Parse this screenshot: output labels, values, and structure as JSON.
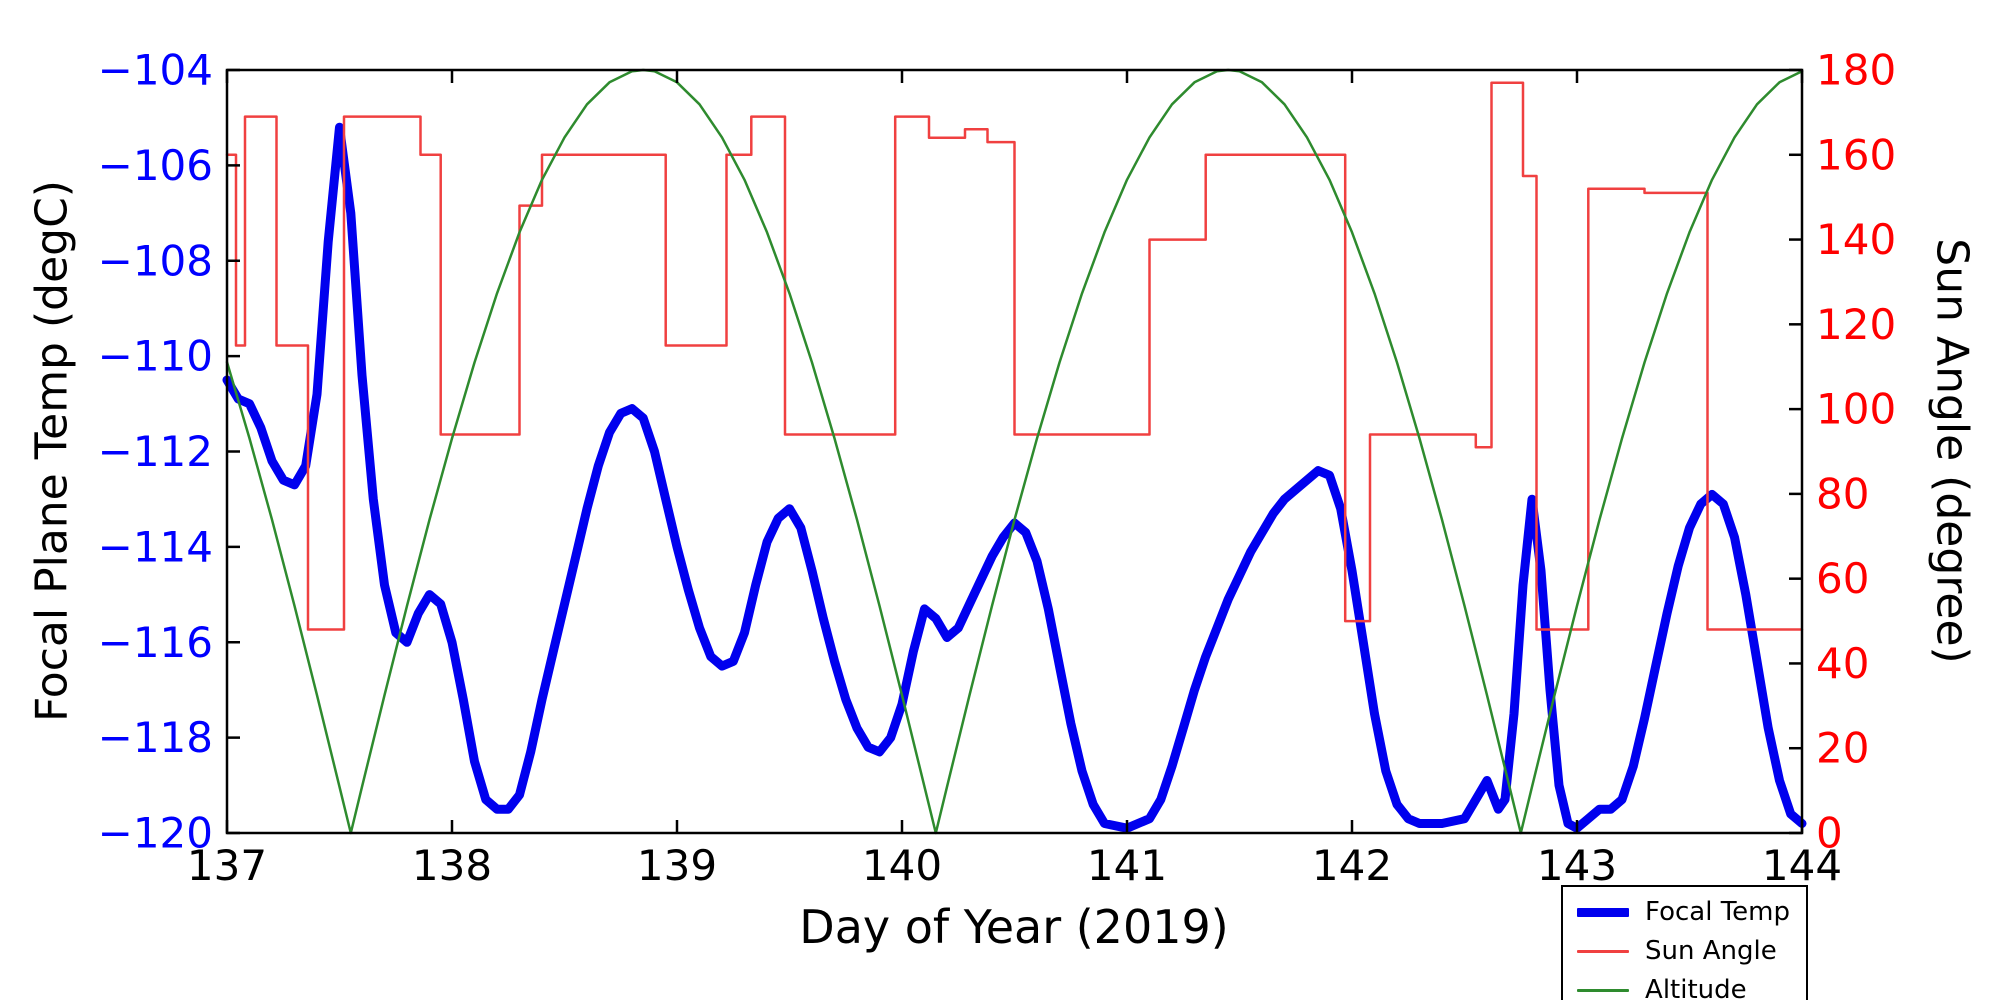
{
  "chart_data": {
    "type": "line",
    "title": "",
    "xlabel": "Day of Year (2019)",
    "ylabel_left": "Focal Plane Temp (degC)",
    "ylabel_right": "Sun Angle (degree)",
    "xlim": [
      137,
      144
    ],
    "ylim_left": [
      -120,
      -104
    ],
    "ylim_right": [
      0,
      180
    ],
    "grid": false,
    "xticks": [
      137,
      138,
      139,
      140,
      141,
      142,
      143,
      144
    ],
    "xtick_labels": [
      "137",
      "138",
      "139",
      "140",
      "141",
      "142",
      "143",
      "144"
    ],
    "yticks_left": [
      -104,
      -106,
      -108,
      -110,
      -112,
      -114,
      -116,
      -118,
      -120
    ],
    "ytick_labels_left": [
      "−104",
      "−106",
      "−108",
      "−110",
      "−112",
      "−114",
      "−116",
      "−118",
      "−120"
    ],
    "yticks_right": [
      0,
      20,
      40,
      60,
      80,
      100,
      120,
      140,
      160,
      180
    ],
    "ytick_labels_right": [
      "0",
      "20",
      "40",
      "60",
      "80",
      "100",
      "120",
      "140",
      "160",
      "180"
    ],
    "colors": {
      "focal_temp": "#0000ee",
      "sun_angle": "#f04040",
      "altitude": "#2e8b2e",
      "left_tick": "#0000ff",
      "right_tick": "#ff0000",
      "axis": "#000000"
    },
    "legend": {
      "position": "lower right",
      "entries": [
        "Focal Temp",
        "Sun Angle",
        "Altitude"
      ]
    },
    "series": [
      {
        "name": "Focal Temp",
        "axis": "left",
        "style": "line",
        "line_width": 9,
        "color_key": "focal_temp",
        "points": [
          [
            137.0,
            -110.5
          ],
          [
            137.05,
            -110.9
          ],
          [
            137.1,
            -111.0
          ],
          [
            137.15,
            -111.5
          ],
          [
            137.2,
            -112.2
          ],
          [
            137.25,
            -112.6
          ],
          [
            137.3,
            -112.7
          ],
          [
            137.35,
            -112.3
          ],
          [
            137.4,
            -110.8
          ],
          [
            137.45,
            -107.6
          ],
          [
            137.5,
            -105.2
          ],
          [
            137.55,
            -107.0
          ],
          [
            137.6,
            -110.4
          ],
          [
            137.65,
            -113.0
          ],
          [
            137.7,
            -114.8
          ],
          [
            137.75,
            -115.8
          ],
          [
            137.8,
            -116.0
          ],
          [
            137.85,
            -115.4
          ],
          [
            137.9,
            -115.0
          ],
          [
            137.95,
            -115.2
          ],
          [
            138.0,
            -116.0
          ],
          [
            138.05,
            -117.2
          ],
          [
            138.1,
            -118.5
          ],
          [
            138.15,
            -119.3
          ],
          [
            138.2,
            -119.5
          ],
          [
            138.25,
            -119.5
          ],
          [
            138.3,
            -119.2
          ],
          [
            138.35,
            -118.3
          ],
          [
            138.4,
            -117.2
          ],
          [
            138.45,
            -116.2
          ],
          [
            138.5,
            -115.2
          ],
          [
            138.55,
            -114.2
          ],
          [
            138.6,
            -113.2
          ],
          [
            138.65,
            -112.3
          ],
          [
            138.7,
            -111.6
          ],
          [
            138.75,
            -111.2
          ],
          [
            138.8,
            -111.1
          ],
          [
            138.85,
            -111.3
          ],
          [
            138.9,
            -112.0
          ],
          [
            138.95,
            -113.0
          ],
          [
            139.0,
            -114.0
          ],
          [
            139.05,
            -114.9
          ],
          [
            139.1,
            -115.7
          ],
          [
            139.15,
            -116.3
          ],
          [
            139.2,
            -116.5
          ],
          [
            139.25,
            -116.4
          ],
          [
            139.3,
            -115.8
          ],
          [
            139.35,
            -114.8
          ],
          [
            139.4,
            -113.9
          ],
          [
            139.45,
            -113.4
          ],
          [
            139.5,
            -113.2
          ],
          [
            139.55,
            -113.6
          ],
          [
            139.6,
            -114.5
          ],
          [
            139.65,
            -115.5
          ],
          [
            139.7,
            -116.4
          ],
          [
            139.75,
            -117.2
          ],
          [
            139.8,
            -117.8
          ],
          [
            139.85,
            -118.2
          ],
          [
            139.9,
            -118.3
          ],
          [
            139.95,
            -118.0
          ],
          [
            140.0,
            -117.3
          ],
          [
            140.05,
            -116.2
          ],
          [
            140.1,
            -115.3
          ],
          [
            140.15,
            -115.5
          ],
          [
            140.2,
            -115.9
          ],
          [
            140.25,
            -115.7
          ],
          [
            140.3,
            -115.2
          ],
          [
            140.35,
            -114.7
          ],
          [
            140.4,
            -114.2
          ],
          [
            140.45,
            -113.8
          ],
          [
            140.5,
            -113.5
          ],
          [
            140.55,
            -113.7
          ],
          [
            140.6,
            -114.3
          ],
          [
            140.65,
            -115.3
          ],
          [
            140.7,
            -116.5
          ],
          [
            140.75,
            -117.7
          ],
          [
            140.8,
            -118.7
          ],
          [
            140.85,
            -119.4
          ],
          [
            140.9,
            -119.8
          ],
          [
            141.0,
            -119.9
          ],
          [
            141.1,
            -119.7
          ],
          [
            141.15,
            -119.3
          ],
          [
            141.2,
            -118.6
          ],
          [
            141.25,
            -117.8
          ],
          [
            141.3,
            -117.0
          ],
          [
            141.35,
            -116.3
          ],
          [
            141.4,
            -115.7
          ],
          [
            141.45,
            -115.1
          ],
          [
            141.5,
            -114.6
          ],
          [
            141.55,
            -114.1
          ],
          [
            141.6,
            -113.7
          ],
          [
            141.65,
            -113.3
          ],
          [
            141.7,
            -113.0
          ],
          [
            141.75,
            -112.8
          ],
          [
            141.8,
            -112.6
          ],
          [
            141.85,
            -112.4
          ],
          [
            141.9,
            -112.5
          ],
          [
            141.95,
            -113.2
          ],
          [
            142.0,
            -114.5
          ],
          [
            142.05,
            -116.0
          ],
          [
            142.1,
            -117.5
          ],
          [
            142.15,
            -118.7
          ],
          [
            142.2,
            -119.4
          ],
          [
            142.25,
            -119.7
          ],
          [
            142.3,
            -119.8
          ],
          [
            142.4,
            -119.8
          ],
          [
            142.5,
            -119.7
          ],
          [
            142.55,
            -119.3
          ],
          [
            142.6,
            -118.9
          ],
          [
            142.65,
            -119.5
          ],
          [
            142.68,
            -119.3
          ],
          [
            142.72,
            -117.5
          ],
          [
            142.76,
            -114.8
          ],
          [
            142.8,
            -113.0
          ],
          [
            142.84,
            -114.5
          ],
          [
            142.88,
            -117.0
          ],
          [
            142.92,
            -119.0
          ],
          [
            142.96,
            -119.8
          ],
          [
            143.0,
            -119.9
          ],
          [
            143.05,
            -119.7
          ],
          [
            143.1,
            -119.5
          ],
          [
            143.15,
            -119.5
          ],
          [
            143.2,
            -119.3
          ],
          [
            143.25,
            -118.6
          ],
          [
            143.3,
            -117.6
          ],
          [
            143.35,
            -116.5
          ],
          [
            143.4,
            -115.4
          ],
          [
            143.45,
            -114.4
          ],
          [
            143.5,
            -113.6
          ],
          [
            143.55,
            -113.1
          ],
          [
            143.6,
            -112.9
          ],
          [
            143.65,
            -113.1
          ],
          [
            143.7,
            -113.8
          ],
          [
            143.75,
            -115.0
          ],
          [
            143.8,
            -116.4
          ],
          [
            143.85,
            -117.8
          ],
          [
            143.9,
            -118.9
          ],
          [
            143.95,
            -119.6
          ],
          [
            144.0,
            -119.8
          ]
        ]
      },
      {
        "name": "Sun Angle",
        "axis": "right",
        "style": "step",
        "line_width": 2.5,
        "color_key": "sun_angle",
        "points": [
          [
            137.0,
            160
          ],
          [
            137.04,
            115
          ],
          [
            137.08,
            169
          ],
          [
            137.22,
            115
          ],
          [
            137.36,
            48
          ],
          [
            137.52,
            169
          ],
          [
            137.86,
            160
          ],
          [
            137.95,
            94
          ],
          [
            138.3,
            148
          ],
          [
            138.4,
            160
          ],
          [
            138.95,
            115
          ],
          [
            139.22,
            160
          ],
          [
            139.33,
            169
          ],
          [
            139.48,
            94
          ],
          [
            139.97,
            169
          ],
          [
            140.12,
            164
          ],
          [
            140.28,
            166
          ],
          [
            140.38,
            163
          ],
          [
            140.5,
            94
          ],
          [
            141.1,
            140
          ],
          [
            141.35,
            160
          ],
          [
            141.97,
            50
          ],
          [
            142.08,
            94
          ],
          [
            142.55,
            91
          ],
          [
            142.62,
            177
          ],
          [
            142.76,
            155
          ],
          [
            142.82,
            48
          ],
          [
            143.05,
            152
          ],
          [
            143.3,
            151
          ],
          [
            143.58,
            48
          ]
        ]
      },
      {
        "name": "Altitude",
        "axis": "right",
        "style": "line",
        "line_width": 2.5,
        "color_key": "altitude",
        "points": [
          [
            137.0,
            111.1
          ],
          [
            137.1,
            93.1
          ],
          [
            137.2,
            73.9
          ],
          [
            137.3,
            53.6
          ],
          [
            137.4,
            32.5
          ],
          [
            137.5,
            10.9
          ],
          [
            137.55,
            0
          ],
          [
            137.6,
            10.9
          ],
          [
            137.7,
            32.5
          ],
          [
            137.8,
            53.6
          ],
          [
            137.9,
            73.9
          ],
          [
            138.0,
            93.1
          ],
          [
            138.1,
            111.0
          ],
          [
            138.2,
            127.3
          ],
          [
            138.3,
            141.7
          ],
          [
            138.4,
            154.1
          ],
          [
            138.5,
            164.1
          ],
          [
            138.6,
            171.9
          ],
          [
            138.7,
            177.1
          ],
          [
            138.8,
            179.7
          ],
          [
            138.85,
            180
          ],
          [
            138.9,
            179.7
          ],
          [
            139.0,
            177.1
          ],
          [
            139.1,
            171.9
          ],
          [
            139.2,
            164.1
          ],
          [
            139.3,
            154.1
          ],
          [
            139.4,
            141.7
          ],
          [
            139.5,
            127.3
          ],
          [
            139.6,
            111.0
          ],
          [
            139.7,
            93.1
          ],
          [
            139.8,
            73.9
          ],
          [
            139.9,
            53.6
          ],
          [
            140.0,
            32.5
          ],
          [
            140.1,
            10.9
          ],
          [
            140.15,
            0
          ],
          [
            140.2,
            10.9
          ],
          [
            140.3,
            32.5
          ],
          [
            140.4,
            53.6
          ],
          [
            140.5,
            73.9
          ],
          [
            140.6,
            93.1
          ],
          [
            140.7,
            111.0
          ],
          [
            140.8,
            127.3
          ],
          [
            140.9,
            141.7
          ],
          [
            141.0,
            154.1
          ],
          [
            141.1,
            164.1
          ],
          [
            141.2,
            171.9
          ],
          [
            141.3,
            177.1
          ],
          [
            141.4,
            179.7
          ],
          [
            141.45,
            180
          ],
          [
            141.5,
            179.7
          ],
          [
            141.6,
            177.1
          ],
          [
            141.7,
            171.9
          ],
          [
            141.8,
            164.1
          ],
          [
            141.9,
            154.1
          ],
          [
            142.0,
            141.7
          ],
          [
            142.1,
            127.3
          ],
          [
            142.2,
            111.0
          ],
          [
            142.3,
            93.1
          ],
          [
            142.4,
            73.9
          ],
          [
            142.5,
            53.6
          ],
          [
            142.6,
            32.5
          ],
          [
            142.7,
            10.9
          ],
          [
            142.75,
            0
          ],
          [
            142.8,
            10.9
          ],
          [
            142.9,
            32.5
          ],
          [
            143.0,
            53.6
          ],
          [
            143.1,
            73.9
          ],
          [
            143.2,
            93.1
          ],
          [
            143.3,
            111.0
          ],
          [
            143.4,
            127.3
          ],
          [
            143.5,
            141.7
          ],
          [
            143.6,
            154.1
          ],
          [
            143.7,
            164.1
          ],
          [
            143.8,
            171.9
          ],
          [
            143.9,
            177.1
          ],
          [
            144.0,
            179.7
          ]
        ]
      }
    ]
  }
}
